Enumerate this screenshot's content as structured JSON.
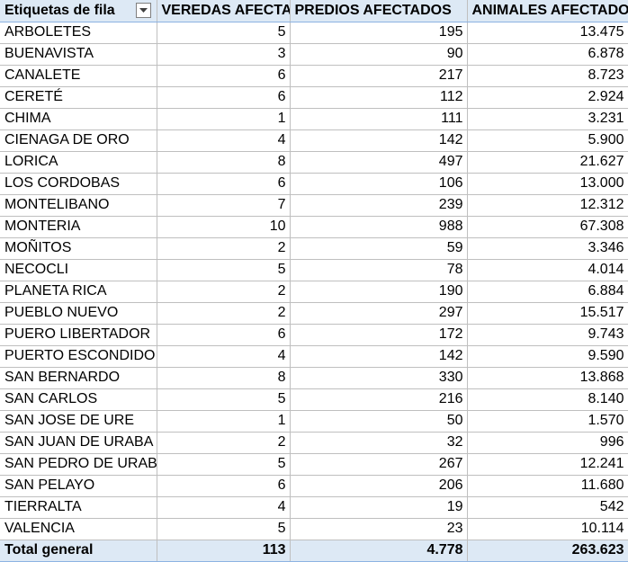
{
  "headers": {
    "row_labels": "Etiquetas de fila",
    "veredas": "VEREDAS AFECTADAS",
    "predios": "PREDIOS AFECTADOS",
    "animales": "ANIMALES AFECTADOS"
  },
  "rows": [
    {
      "name": "ARBOLETES",
      "veredas": "5",
      "predios": "195",
      "animales": "13.475"
    },
    {
      "name": "BUENAVISTA",
      "veredas": "3",
      "predios": "90",
      "animales": "6.878"
    },
    {
      "name": "CANALETE",
      "veredas": "6",
      "predios": "217",
      "animales": "8.723"
    },
    {
      "name": "CERETÉ",
      "veredas": "6",
      "predios": "112",
      "animales": "2.924"
    },
    {
      "name": "CHIMA",
      "veredas": "1",
      "predios": "111",
      "animales": "3.231"
    },
    {
      "name": "CIENAGA DE ORO",
      "veredas": "4",
      "predios": "142",
      "animales": "5.900"
    },
    {
      "name": "LORICA",
      "veredas": "8",
      "predios": "497",
      "animales": "21.627"
    },
    {
      "name": "LOS CORDOBAS",
      "veredas": "6",
      "predios": "106",
      "animales": "13.000"
    },
    {
      "name": "MONTELIBANO",
      "veredas": "7",
      "predios": "239",
      "animales": "12.312"
    },
    {
      "name": "MONTERIA",
      "veredas": "10",
      "predios": "988",
      "animales": "67.308"
    },
    {
      "name": "MOÑITOS",
      "veredas": "2",
      "predios": "59",
      "animales": "3.346"
    },
    {
      "name": "NECOCLI",
      "veredas": "5",
      "predios": "78",
      "animales": "4.014"
    },
    {
      "name": "PLANETA RICA",
      "veredas": "2",
      "predios": "190",
      "animales": "6.884"
    },
    {
      "name": "PUEBLO NUEVO",
      "veredas": "2",
      "predios": "297",
      "animales": "15.517"
    },
    {
      "name": "PUERO LIBERTADOR",
      "veredas": "6",
      "predios": "172",
      "animales": "9.743"
    },
    {
      "name": "PUERTO ESCONDIDO",
      "veredas": "4",
      "predios": "142",
      "animales": "9.590"
    },
    {
      "name": "SAN BERNARDO",
      "veredas": "8",
      "predios": "330",
      "animales": "13.868"
    },
    {
      "name": "SAN CARLOS",
      "veredas": "5",
      "predios": "216",
      "animales": "8.140"
    },
    {
      "name": "SAN JOSE DE URE",
      "veredas": "1",
      "predios": "50",
      "animales": "1.570"
    },
    {
      "name": "SAN JUAN DE URABA",
      "veredas": "2",
      "predios": "32",
      "animales": "996"
    },
    {
      "name": "SAN PEDRO DE URABA",
      "veredas": "5",
      "predios": "267",
      "animales": "12.241"
    },
    {
      "name": "SAN PELAYO",
      "veredas": "6",
      "predios": "206",
      "animales": "11.680"
    },
    {
      "name": "TIERRALTA",
      "veredas": "4",
      "predios": "19",
      "animales": "542"
    },
    {
      "name": "VALENCIA",
      "veredas": "5",
      "predios": "23",
      "animales": "10.114"
    }
  ],
  "total": {
    "label": "Total general",
    "veredas": "113",
    "predios": "4.778",
    "animales": "263.623"
  },
  "colors": {
    "header_fill": "#dde9f5",
    "grid_line": "#bfbfbf",
    "accent_border": "#8db3e2"
  },
  "icons": {
    "filter": "filter-dropdown-icon"
  }
}
